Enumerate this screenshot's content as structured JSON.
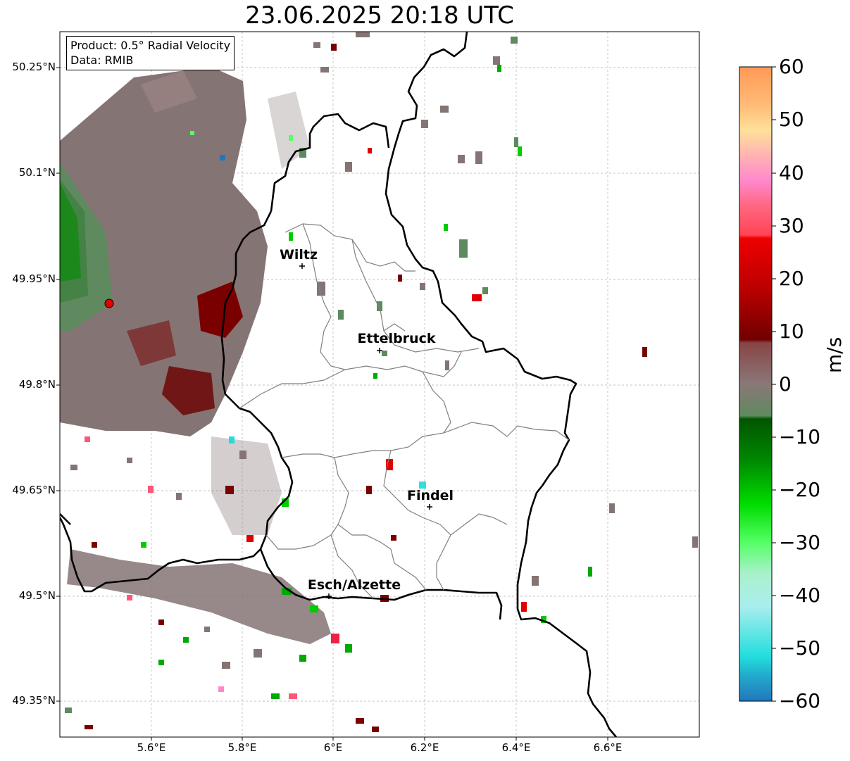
{
  "title": "23.06.2025 20:18 UTC",
  "info_box": {
    "product": "Product: 0.5° Radial Velocity",
    "data_source": "Data: RMIB"
  },
  "lat_ticks": [
    "50.25°N",
    "50.1°N",
    "49.95°N",
    "49.8°N",
    "49.65°N",
    "49.5°N",
    "49.35°N"
  ],
  "lon_ticks": [
    "5.6°E",
    "5.8°E",
    "6°E",
    "6.2°E",
    "6.4°E",
    "6.6°E"
  ],
  "cities": [
    {
      "name": "Wiltz"
    },
    {
      "name": "Ettelbruck"
    },
    {
      "name": "Findel"
    },
    {
      "name": "Esch/Alzette"
    }
  ],
  "colorbar": {
    "label": "m/s",
    "ticks": [
      "60",
      "50",
      "40",
      "30",
      "20",
      "10",
      "0",
      "−10",
      "−20",
      "−30",
      "−40",
      "−50",
      "−60"
    ]
  },
  "colors": {
    "velocity_away": "#7a0000",
    "velocity_toward": "#00aa00",
    "near_zero": "#857474",
    "radar_site": "#e00000"
  }
}
